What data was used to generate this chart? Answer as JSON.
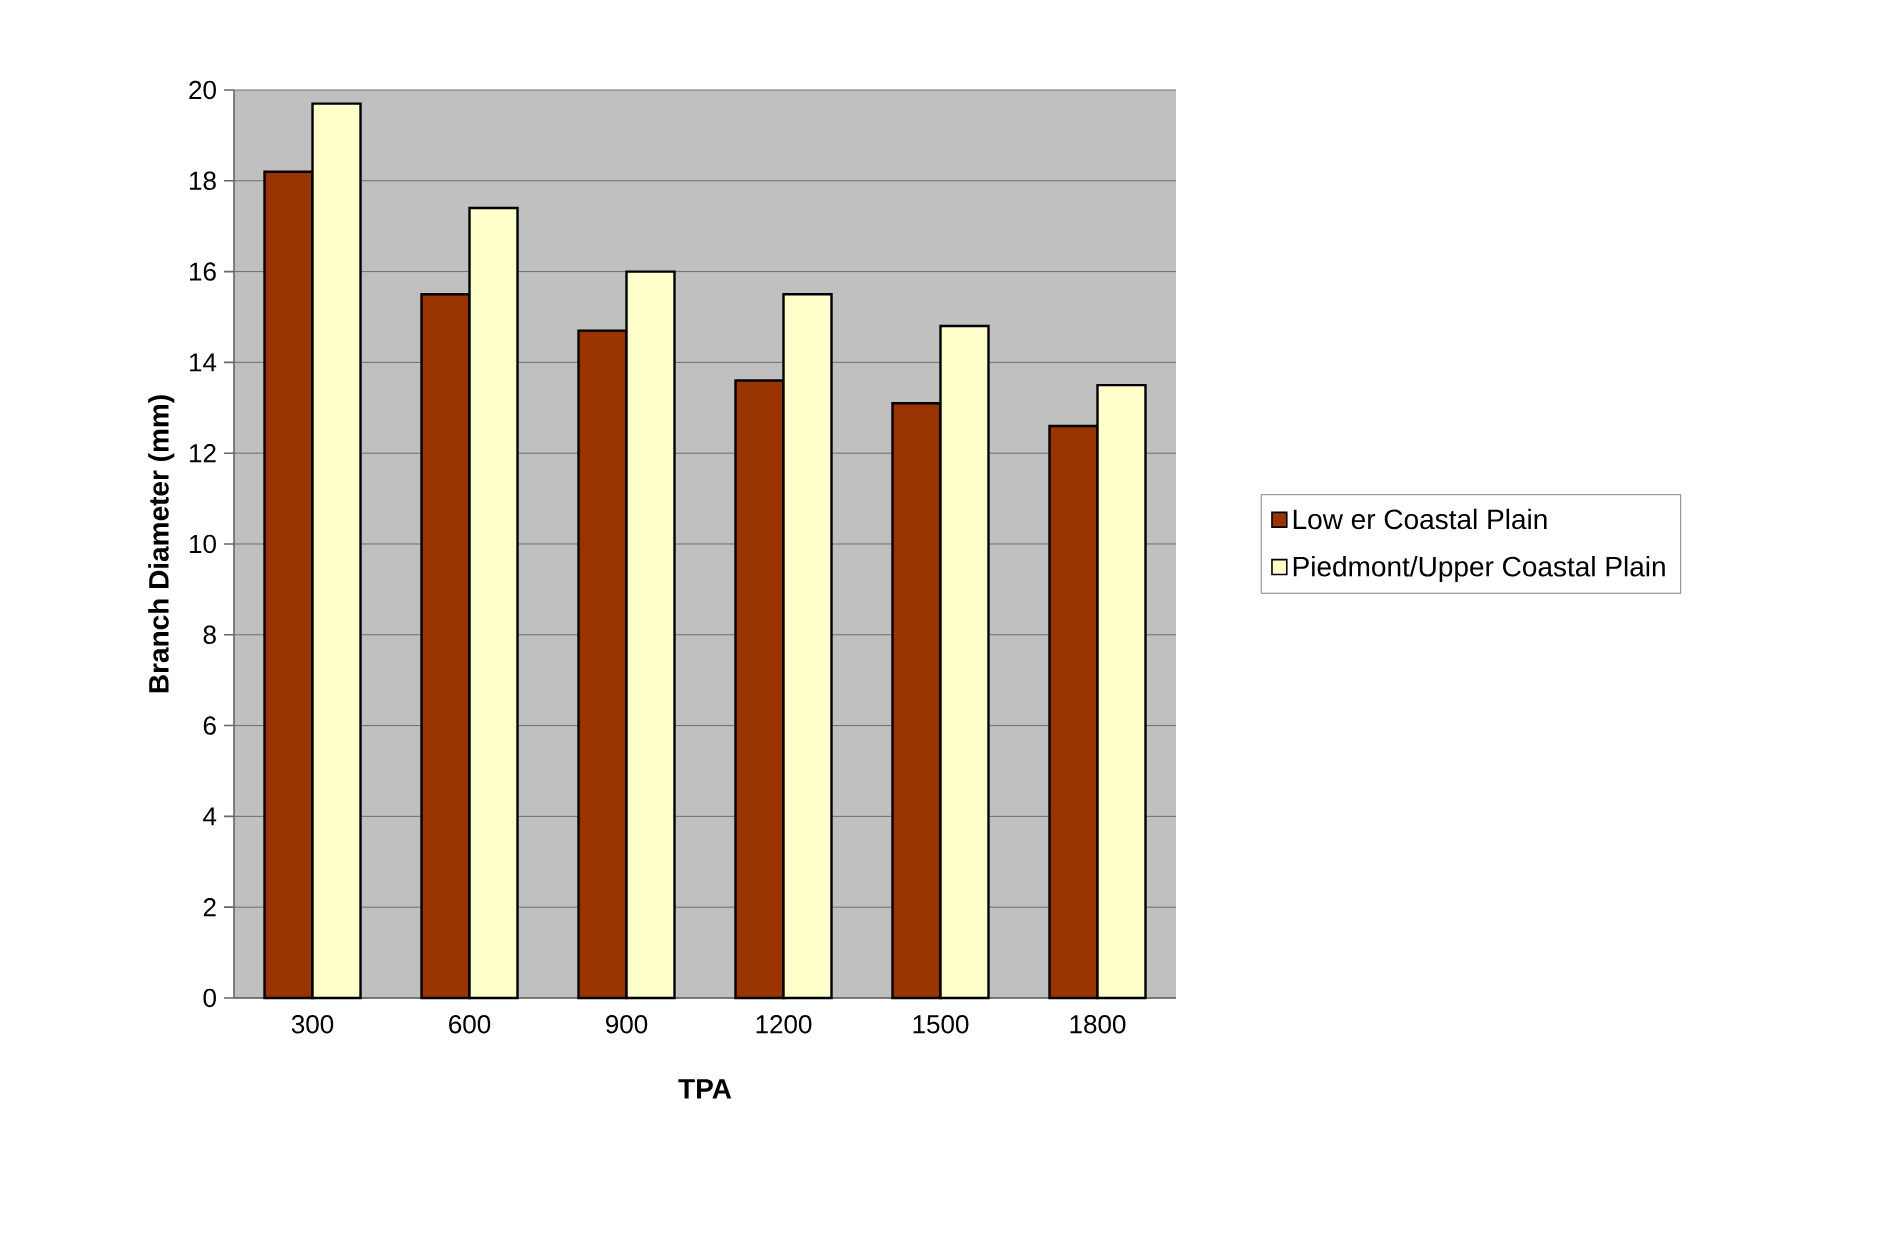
{
  "chart_data": {
    "type": "bar",
    "xlabel": "TPA",
    "ylabel": "Branch Diameter (mm)",
    "categories": [
      "300",
      "600",
      "900",
      "1200",
      "1500",
      "1800"
    ],
    "series": [
      {
        "name": "Low er Coastal Plain",
        "color": "#993300",
        "values": [
          18.2,
          15.5,
          14.7,
          13.6,
          13.1,
          12.6
        ]
      },
      {
        "name": "Piedmont/Upper Coastal Plain",
        "color": "#ffffcc",
        "values": [
          19.7,
          17.4,
          16.0,
          15.5,
          14.8,
          13.5
        ]
      }
    ],
    "ylim": [
      0,
      20
    ],
    "yticks": [
      0,
      2,
      4,
      6,
      8,
      10,
      12,
      14,
      16,
      18,
      20
    ],
    "grid": "y",
    "legend": "right"
  }
}
